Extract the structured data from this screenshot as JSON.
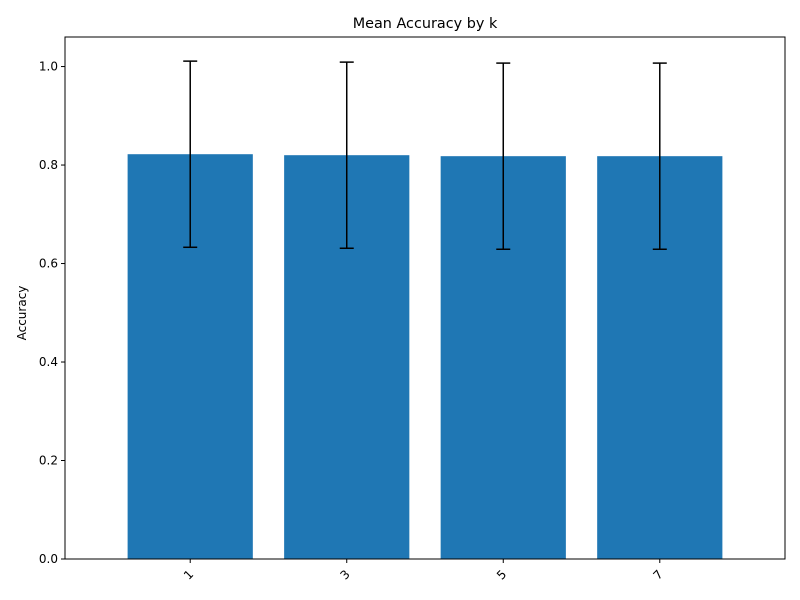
{
  "chart_data": {
    "type": "bar",
    "title": "Mean Accuracy by k",
    "xlabel": "",
    "ylabel": "Accuracy",
    "categories": [
      "1",
      "3",
      "5",
      "7"
    ],
    "values": [
      0.822,
      0.82,
      0.818,
      0.818
    ],
    "error_bars": [
      {
        "low": 0.633,
        "high": 1.011
      },
      {
        "low": 0.631,
        "high": 1.009
      },
      {
        "low": 0.629,
        "high": 1.007
      },
      {
        "low": 0.629,
        "high": 1.007
      }
    ],
    "ylim": [
      0,
      1.06
    ],
    "yticks": [
      "0.0",
      "0.2",
      "0.4",
      "0.6",
      "0.8",
      "1.0"
    ],
    "bar_color": "#1f77b4",
    "error_color": "#000000",
    "grid": false,
    "xtick_rotation_deg": 45
  }
}
